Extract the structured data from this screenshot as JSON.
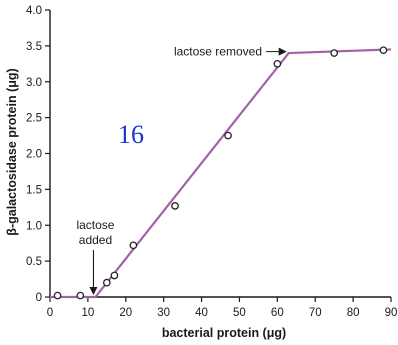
{
  "page_number": "16",
  "colors": {
    "curve": "#a362a8",
    "axis": "#1a1a1a",
    "marker_stroke": "#222222",
    "marker_fill": "#ffffff",
    "page_number": "#1a33cc"
  },
  "chart_data": {
    "type": "line",
    "xlabel": "bacterial protein (μg)",
    "ylabel": "β-galactosidase protein (μg)",
    "xlim": [
      0,
      90
    ],
    "ylim": [
      0,
      4.0
    ],
    "x_ticks": [
      "0",
      "10",
      "20",
      "30",
      "40",
      "50",
      "60",
      "70",
      "80",
      "90"
    ],
    "y_ticks": [
      "0",
      "0.5",
      "1.0",
      "1.5",
      "2.0",
      "2.5",
      "3.0",
      "3.5",
      "4.0"
    ],
    "grid": false,
    "series": [
      {
        "kind": "line",
        "x": [
          0,
          12,
          63,
          90
        ],
        "y": [
          0,
          0,
          3.4,
          3.45
        ]
      },
      {
        "kind": "points",
        "x": [
          2,
          8,
          15,
          17,
          22,
          33,
          47,
          60,
          75,
          88
        ],
        "y": [
          0.02,
          0.02,
          0.2,
          0.3,
          0.72,
          1.27,
          2.25,
          3.25,
          3.4,
          3.44
        ]
      }
    ],
    "annotations": [
      {
        "lines": [
          "lactose",
          "added"
        ],
        "target_x": 12,
        "target_y": 0
      },
      {
        "lines": [
          "lactose removed"
        ],
        "target_x": 63,
        "target_y": 3.42
      }
    ]
  }
}
